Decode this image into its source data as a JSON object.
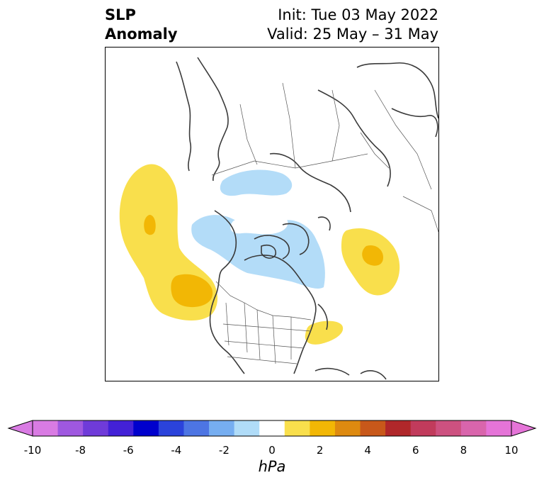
{
  "title": {
    "left_line1": "SLP",
    "left_line2": "Anomaly",
    "right_line1": "Init: Tue 03 May 2022",
    "right_line2": "Valid: 25 May – 31 May"
  },
  "map": {
    "projection": "polar-stereographic",
    "region": "Northern Hemisphere / North America",
    "features": [
      "coastlines",
      "country-borders",
      "us-state-borders"
    ],
    "anomaly_areas": [
      {
        "name": "north-pacific-positive",
        "level": "1 to 3 hPa",
        "color": "#f9df4c"
      },
      {
        "name": "north-pacific-core",
        "level": "2 to 3 hPa",
        "color": "#f2b705"
      },
      {
        "name": "north-atlantic-positive",
        "level": "1 to 3 hPa",
        "color": "#f9df4c"
      },
      {
        "name": "north-atlantic-core",
        "level": "2 to 3 hPa",
        "color": "#f2b705"
      },
      {
        "name": "western-atlantic-positive",
        "level": "1 to 2 hPa",
        "color": "#f9df4c"
      },
      {
        "name": "arctic-negative",
        "level": "-1 to -2 hPa",
        "color": "#b3dcf8"
      }
    ]
  },
  "colorbar": {
    "unit": "hPa",
    "ticks": [
      "-10",
      "-8",
      "-6",
      "-4",
      "-2",
      "0",
      "2",
      "4",
      "6",
      "8",
      "10"
    ],
    "colors": [
      "#d97be3",
      "#9f58e0",
      "#6f3bd9",
      "#4321d7",
      "#0000cd",
      "#2b43db",
      "#4d75e3",
      "#76aef1",
      "#b0dcf8",
      "#ffffff",
      "#f9df4c",
      "#f2b705",
      "#de8a10",
      "#c8581a",
      "#b0272a",
      "#c13b5c",
      "#cd5180",
      "#d965ac",
      "#e574d8"
    ],
    "under_color": "#d97be3",
    "over_color": "#e574d8",
    "min": -10,
    "max": 10
  }
}
